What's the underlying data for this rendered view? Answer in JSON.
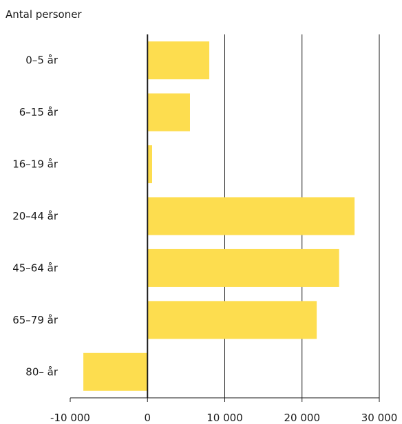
{
  "chart_data": {
    "type": "bar",
    "orientation": "horizontal",
    "ylabel": "Antal personer",
    "categories": [
      "0–5 år",
      "6–15 år",
      "16–19 år",
      "20–44 år",
      "45–64 år",
      "65–79 år",
      "80– år"
    ],
    "values": [
      8000,
      5500,
      600,
      26800,
      24800,
      21900,
      -8300
    ],
    "xlim": [
      -10000,
      30000
    ],
    "xticks": [
      -10000,
      0,
      10000,
      20000,
      30000
    ],
    "xtick_labels": [
      "-10 000",
      "0",
      "10 000",
      "20 000",
      "30 000"
    ],
    "grid": "vertical",
    "colors": {
      "bar": "#FDDD4F",
      "zero_line": "#1a1a1a",
      "grid": "#1a1a1a"
    }
  }
}
